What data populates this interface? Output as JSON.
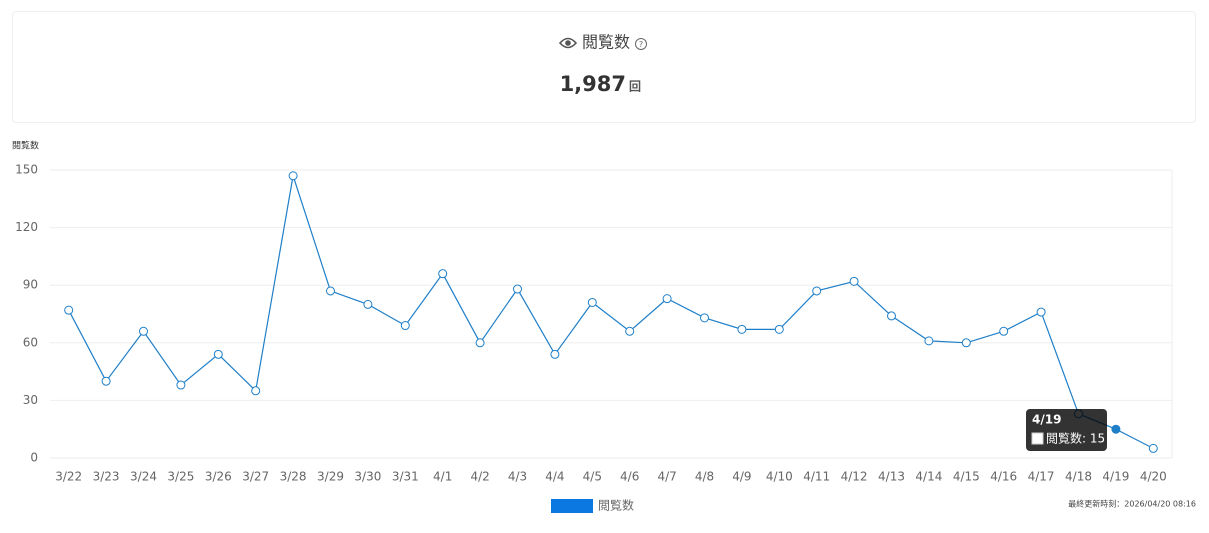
{
  "header": {
    "title": "閲覧数",
    "help_icon": "?",
    "value": "1,987",
    "unit": "回"
  },
  "chart_data": {
    "type": "line",
    "y_label": "閲覧数",
    "categories": [
      "3/22",
      "3/23",
      "3/24",
      "3/25",
      "3/26",
      "3/27",
      "3/28",
      "3/29",
      "3/30",
      "3/31",
      "4/1",
      "4/2",
      "4/3",
      "4/4",
      "4/5",
      "4/6",
      "4/7",
      "4/8",
      "4/9",
      "4/10",
      "4/11",
      "4/12",
      "4/13",
      "4/14",
      "4/15",
      "4/16",
      "4/17",
      "4/18",
      "4/19",
      "4/20"
    ],
    "series": [
      {
        "name": "閲覧数",
        "color": "#1f7fc8",
        "legend_color": "#0a78e0",
        "values": [
          77,
          40,
          66,
          38,
          54,
          35,
          147,
          87,
          80,
          69,
          96,
          60,
          88,
          54,
          81,
          66,
          83,
          73,
          67,
          67,
          87,
          92,
          74,
          61,
          60,
          66,
          76,
          23,
          15,
          5
        ]
      }
    ],
    "ylim": [
      0,
      150
    ],
    "yticks": [
      0,
      30,
      60,
      90,
      120,
      150
    ],
    "grid": true,
    "tooltip": {
      "index": 28,
      "title": "4/19",
      "body": "閲覧数: 15"
    },
    "last_updated": "最終更新時刻：2026/04/20 08:16"
  }
}
